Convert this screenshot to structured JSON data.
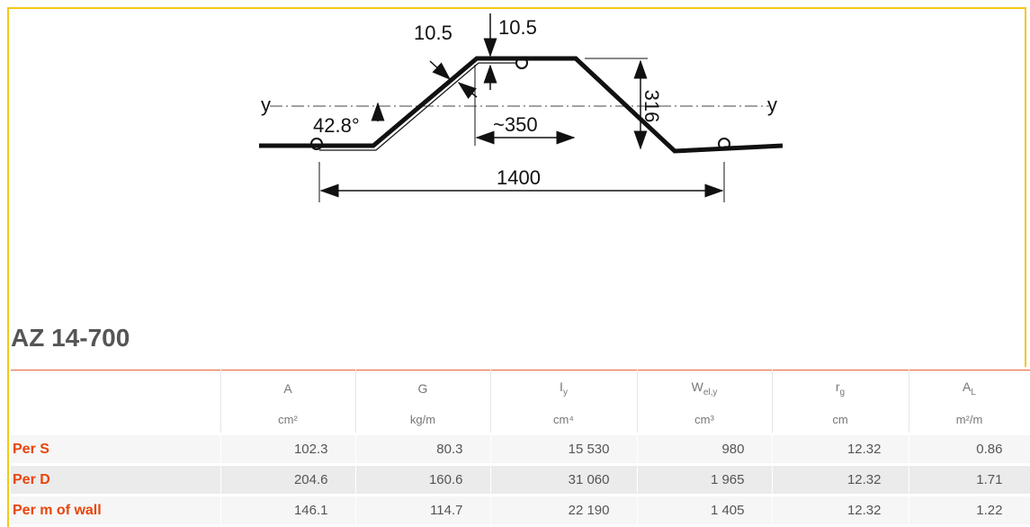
{
  "diagram": {
    "labels": {
      "flange_thickness": "10.5",
      "web_thickness": "10.5",
      "axis_left": "y",
      "axis_right": "y",
      "angle": "42.8°",
      "flange_width": "~350",
      "height": "316",
      "width": "1400"
    }
  },
  "title": "AZ 14-700",
  "table": {
    "columns": [
      {
        "symbol": "A",
        "unit": "cm²"
      },
      {
        "symbol": "G",
        "unit": "kg/m"
      },
      {
        "symbol": "I",
        "subscript": "y",
        "unit": "cm⁴"
      },
      {
        "symbol": "W",
        "subscript": "el,y",
        "unit": "cm³"
      },
      {
        "symbol": "r",
        "subscript": "g",
        "unit": "cm"
      },
      {
        "symbol": "A",
        "subscript": "L",
        "unit": "m²/m"
      }
    ],
    "rows": [
      {
        "label": "Per S",
        "cells": [
          "102.3",
          "80.3",
          "15 530",
          "980",
          "12.32",
          "0.86"
        ]
      },
      {
        "label": "Per D",
        "cells": [
          "204.6",
          "160.6",
          "31 060",
          "1 965",
          "12.32",
          "1.71"
        ]
      },
      {
        "label": "Per m of wall",
        "cells": [
          "146.1",
          "114.7",
          "22 190",
          "1 405",
          "12.32",
          "1.22"
        ]
      }
    ]
  }
}
